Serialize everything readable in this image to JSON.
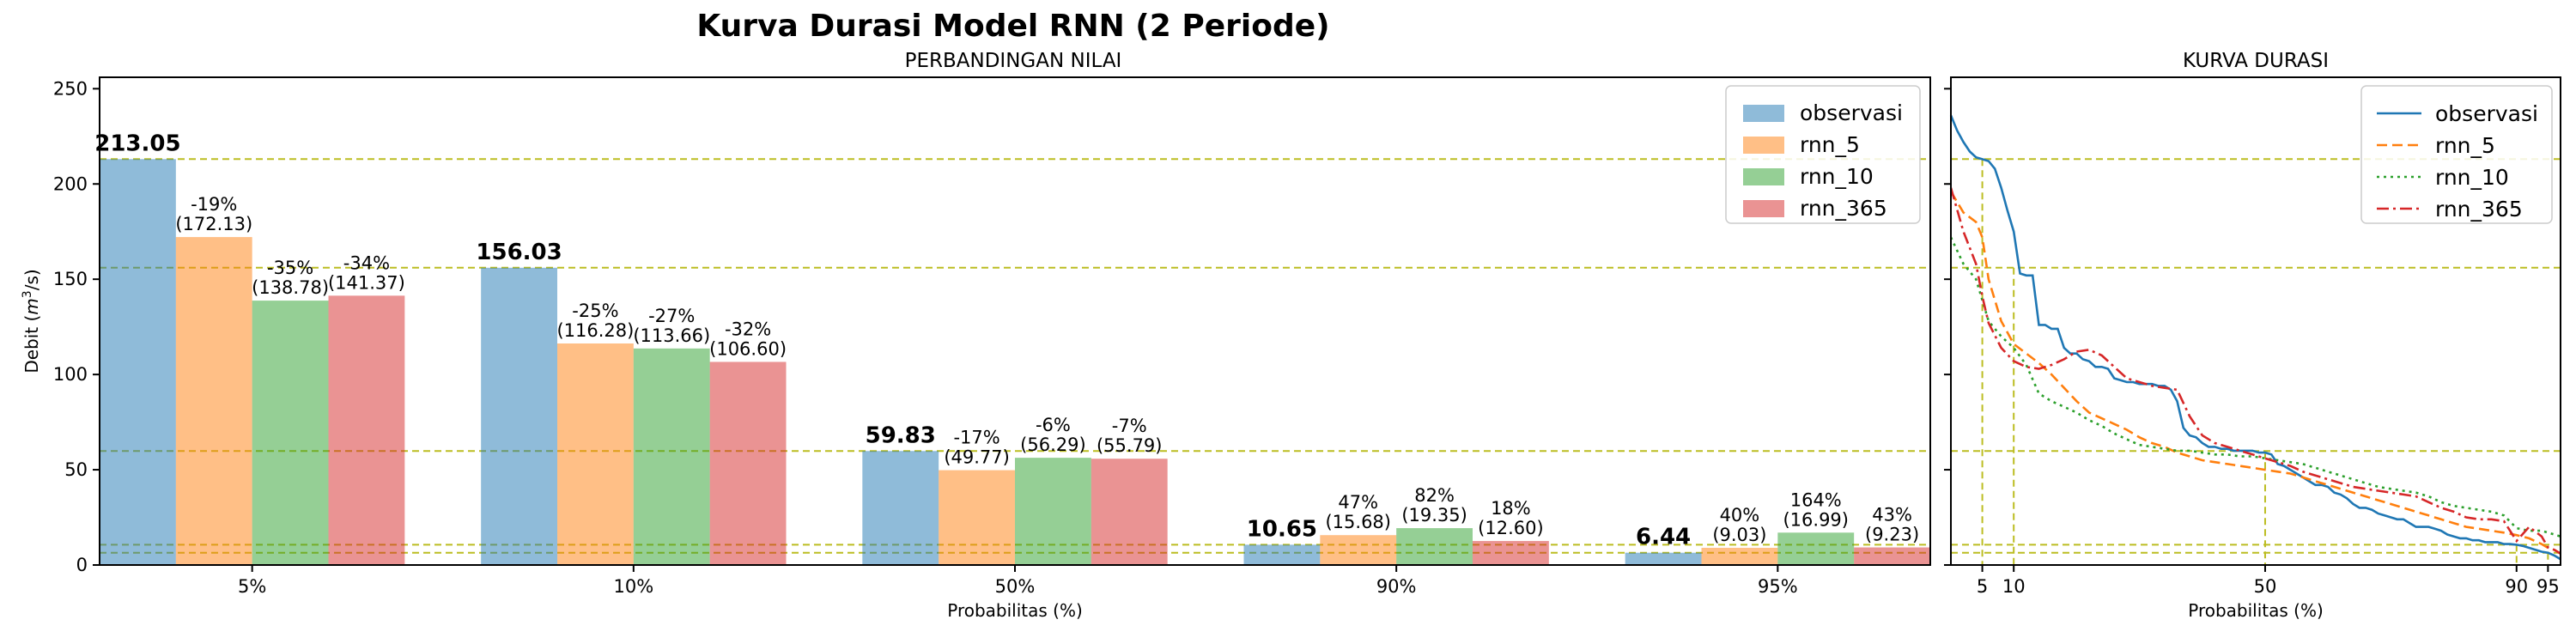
{
  "suptitle": "Kurva Durasi Model RNN (2 Periode)",
  "colors": {
    "observasi": "#1f77b4",
    "rnn_5": "#ff7f0e",
    "rnn_10": "#2ca02c",
    "rnn_365": "#d62728",
    "reference_line": "#bcbd22"
  },
  "chart_data": [
    {
      "type": "bar",
      "title": "PERBANDINGAN NILAI",
      "xlabel": "Probabilitas (%)",
      "ylabel": "Debit (m³/s)",
      "ylabel_parts": {
        "prefix": "Debit (",
        "var": "m",
        "sup": "3",
        "suffix": "/s)"
      },
      "ylim": [
        0,
        256
      ],
      "yticks": [
        0,
        50,
        100,
        150,
        200,
        250
      ],
      "grid": false,
      "legend": "top-right",
      "categories": [
        "5%",
        "10%",
        "50%",
        "90%",
        "95%"
      ],
      "series": [
        {
          "name": "observasi",
          "values": [
            213.05,
            156.03,
            59.83,
            10.65,
            6.44
          ],
          "labels": [
            "213.05",
            "156.03",
            "59.83",
            "10.65",
            "6.44"
          ]
        },
        {
          "name": "rnn_5",
          "values": [
            172.13,
            116.28,
            49.77,
            15.68,
            9.03
          ],
          "labels": [
            "-19%\n(172.13)",
            "-25%\n(116.28)",
            "-17%\n(49.77)",
            "47%\n(15.68)",
            "40%\n(9.03)"
          ]
        },
        {
          "name": "rnn_10",
          "values": [
            138.78,
            113.66,
            56.29,
            19.35,
            16.99
          ],
          "labels": [
            "-35%\n(138.78)",
            "-27%\n(113.66)",
            "-6%\n(56.29)",
            "82%\n(19.35)",
            "164%\n(16.99)"
          ]
        },
        {
          "name": "rnn_365",
          "values": [
            141.37,
            106.6,
            55.79,
            12.6,
            9.23
          ],
          "labels": [
            "-34%\n(141.37)",
            "-32%\n(106.60)",
            "-7%\n(55.79)",
            "18%\n(12.60)",
            "43%\n(9.23)"
          ]
        }
      ],
      "reference_lines": [
        213.05,
        156.03,
        59.83,
        10.65,
        6.44
      ]
    },
    {
      "type": "line",
      "title": "KURVA DURASI",
      "xlabel": "Probabilitas (%)",
      "xlim": [
        0,
        97
      ],
      "ylim": [
        0,
        256
      ],
      "xticks": [
        5,
        10,
        50,
        90,
        95
      ],
      "legend": "top-right",
      "reference_points": [
        [
          5,
          213.05
        ],
        [
          10,
          156.03
        ],
        [
          50,
          59.83
        ],
        [
          90,
          10.65
        ],
        [
          95,
          6.44
        ]
      ],
      "series": [
        {
          "name": "observasi",
          "style": "solid",
          "x": [
            0,
            1,
            2,
            3,
            4,
            5,
            6,
            7,
            8,
            9,
            10,
            11,
            12,
            13,
            14,
            15,
            16,
            17,
            18,
            19,
            20,
            21,
            22,
            23,
            24,
            25,
            26,
            27,
            28,
            29,
            30,
            31,
            32,
            33,
            34,
            35,
            36,
            37,
            38,
            39,
            40,
            41,
            42,
            43,
            44,
            45,
            46,
            47,
            48,
            49,
            50,
            51,
            52,
            53,
            54,
            55,
            56,
            57,
            58,
            59,
            60,
            61,
            62,
            63,
            64,
            65,
            66,
            67,
            68,
            69,
            70,
            71,
            72,
            73,
            74,
            75,
            76,
            77,
            78,
            79,
            80,
            81,
            82,
            83,
            84,
            85,
            86,
            87,
            88,
            89,
            90,
            91,
            92,
            93,
            94,
            95,
            96,
            97
          ],
          "y": [
            236,
            228,
            222,
            217,
            214,
            213,
            212,
            208,
            198,
            186,
            175,
            153,
            152,
            152,
            126,
            126,
            124,
            124,
            114,
            111,
            111,
            108,
            107,
            104,
            104,
            103,
            98,
            97,
            96,
            96,
            95,
            95,
            95,
            94,
            94,
            92,
            86,
            72,
            68,
            67,
            64,
            62,
            62,
            61,
            61,
            60,
            60,
            60,
            60,
            59,
            59,
            58,
            53,
            52,
            50,
            48,
            46,
            44,
            42,
            42,
            41,
            38,
            37,
            35,
            32,
            30,
            30,
            29,
            27,
            26,
            25,
            24,
            24,
            22,
            20,
            20,
            20,
            19,
            18,
            16,
            15,
            14,
            14,
            13,
            13,
            12,
            12,
            12,
            11,
            11,
            10.65,
            10,
            9,
            8,
            7,
            6.44,
            5,
            3
          ]
        },
        {
          "name": "rnn_5",
          "style": "dashed",
          "x": [
            0,
            2,
            4,
            5,
            6,
            8,
            10,
            12,
            14,
            16,
            18,
            20,
            22,
            24,
            26,
            28,
            30,
            32,
            34,
            36,
            38,
            40,
            42,
            44,
            46,
            48,
            50,
            52,
            54,
            56,
            58,
            60,
            62,
            64,
            66,
            68,
            70,
            72,
            74,
            76,
            78,
            80,
            82,
            84,
            86,
            88,
            90,
            92,
            94,
            95,
            96,
            97
          ],
          "y": [
            196,
            185,
            180,
            172,
            150,
            128,
            116,
            111,
            106,
            100,
            93,
            86,
            80,
            77,
            74,
            71,
            67,
            64,
            62,
            59,
            57,
            55,
            54,
            53,
            52,
            51,
            50,
            49,
            48,
            46,
            44,
            42,
            40,
            38,
            36,
            34,
            32,
            30,
            28,
            26,
            24,
            22,
            20,
            19,
            18,
            17,
            15.68,
            14,
            11,
            9.03,
            8,
            6
          ]
        },
        {
          "name": "rnn_10",
          "style": "dotted",
          "x": [
            0,
            2,
            4,
            5,
            6,
            8,
            10,
            12,
            14,
            16,
            18,
            20,
            22,
            24,
            26,
            28,
            30,
            32,
            34,
            36,
            38,
            40,
            42,
            44,
            46,
            48,
            50,
            52,
            54,
            56,
            58,
            60,
            62,
            64,
            66,
            68,
            70,
            72,
            74,
            76,
            78,
            80,
            82,
            84,
            86,
            88,
            90,
            92,
            94,
            95,
            96,
            97
          ],
          "y": [
            172,
            158,
            150,
            139,
            128,
            120,
            114,
            105,
            90,
            86,
            83,
            80,
            76,
            73,
            69,
            66,
            63,
            62,
            61,
            60,
            60,
            59,
            58,
            58,
            57,
            57,
            56,
            55,
            54,
            53,
            51,
            49,
            47,
            45,
            43,
            41,
            40,
            39,
            38,
            36,
            33,
            31,
            30,
            29,
            28,
            26,
            19.35,
            18,
            18,
            16.99,
            16,
            15
          ]
        },
        {
          "name": "rnn_365",
          "style": "dashdot",
          "x": [
            0,
            2,
            4,
            5,
            6,
            8,
            10,
            12,
            14,
            16,
            18,
            20,
            22,
            24,
            26,
            28,
            30,
            32,
            34,
            36,
            38,
            40,
            42,
            44,
            46,
            48,
            50,
            52,
            54,
            56,
            58,
            60,
            62,
            64,
            66,
            68,
            70,
            72,
            74,
            76,
            78,
            80,
            82,
            84,
            86,
            88,
            90,
            92,
            94,
            95,
            96,
            97
          ],
          "y": [
            198,
            175,
            158,
            141,
            127,
            114,
            107,
            104,
            103,
            105,
            108,
            112,
            113,
            110,
            104,
            98,
            96,
            94,
            93,
            92,
            78,
            68,
            64,
            62,
            60,
            58,
            56,
            54,
            52,
            49,
            47,
            45,
            43,
            41,
            40,
            39,
            38,
            37,
            36,
            33,
            30,
            28,
            25,
            24,
            24,
            23,
            12.6,
            20,
            15,
            9.23,
            8,
            6
          ]
        }
      ]
    }
  ]
}
